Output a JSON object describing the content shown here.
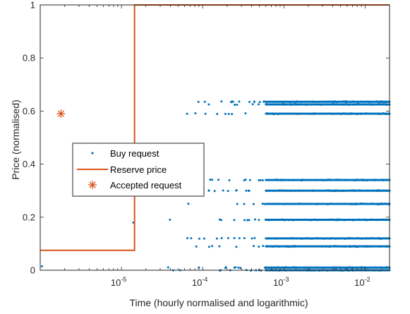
{
  "chart_data": {
    "type": "scatter",
    "xlabel": "Time (hourly normalised and logarithmic)",
    "ylabel": "Price (normalised)",
    "xscale": "log",
    "xlim": [
      1e-06,
      0.02
    ],
    "ylim": [
      0,
      1
    ],
    "grid": false,
    "legend_position": "center-left",
    "x_ticks": [
      {
        "value": 1e-05,
        "base": "10",
        "exp": "-5"
      },
      {
        "value": 0.0001,
        "base": "10",
        "exp": "-4"
      },
      {
        "value": 0.001,
        "base": "10",
        "exp": "-3"
      },
      {
        "value": 0.01,
        "base": "10",
        "exp": "-2"
      }
    ],
    "y_ticks": [
      {
        "value": 0,
        "label": "0"
      },
      {
        "value": 0.2,
        "label": "0.2"
      },
      {
        "value": 0.4,
        "label": "0.4"
      },
      {
        "value": 0.6,
        "label": "0.6"
      },
      {
        "value": 0.8,
        "label": "0.8"
      },
      {
        "value": 1,
        "label": "1"
      }
    ],
    "series": [
      {
        "name": "Buy request",
        "kind": "scatter",
        "color": "#0072BD",
        "price_levels": [
          0.0,
          0.01,
          0.09,
          0.12,
          0.19,
          0.25,
          0.3,
          0.34,
          0.59,
          0.625,
          0.635
        ],
        "level_start_x": [
          1.5e-05,
          1.6e-05,
          2.3e-05,
          2.5e-05,
          2e-05,
          3e-05,
          3.5e-05,
          5.5e-05,
          3e-05,
          8e-05,
          2.8e-05
        ],
        "x_end": 0.02,
        "extra_points": [
          {
            "x": 1.05e-06,
            "y": 0.015
          },
          {
            "x": 1.4e-05,
            "y": 0.18
          }
        ]
      },
      {
        "name": "Reserve price",
        "kind": "step",
        "color": "#D95319",
        "x": [
          1e-06,
          1.45e-05,
          1.45e-05,
          0.02
        ],
        "y": [
          0.075,
          0.075,
          1.0,
          1.0
        ]
      },
      {
        "name": "Accepted request",
        "kind": "marker",
        "color": "#D95319",
        "points": [
          {
            "x": 1.8e-06,
            "y": 0.59
          }
        ]
      }
    ]
  }
}
